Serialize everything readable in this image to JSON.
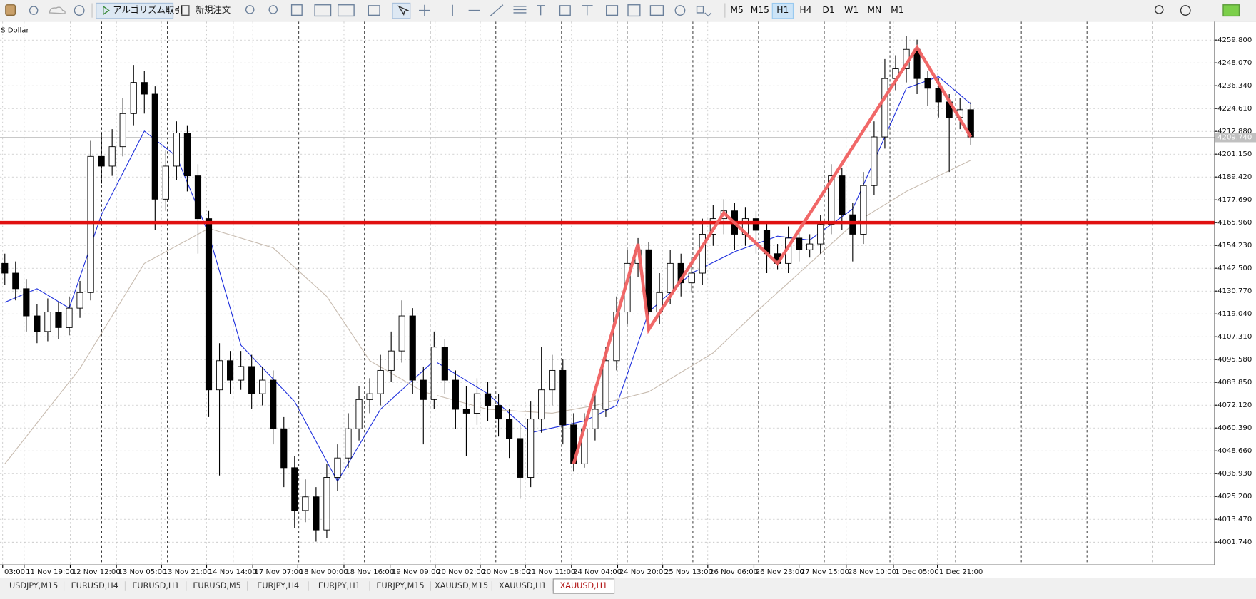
{
  "toolbar": {
    "buttons": [
      "アルゴリズム取引",
      "新規注文"
    ],
    "timeframes": [
      "M5",
      "M15",
      "H1",
      "H4",
      "D1",
      "W1",
      "MN",
      "M1"
    ],
    "active_timeframe": 2
  },
  "chart_data": {
    "type": "candlestick",
    "title": "S Dollar",
    "candles": [
      [
        4145,
        4150,
        4134,
        4140
      ],
      [
        4140,
        4146,
        4126,
        4132
      ],
      [
        4132,
        4137,
        4110,
        4118
      ],
      [
        4118,
        4124,
        4104,
        4110
      ],
      [
        4110,
        4127,
        4105,
        4120
      ],
      [
        4120,
        4125,
        4106,
        4112
      ],
      [
        4112,
        4128,
        4108,
        4122
      ],
      [
        4122,
        4136,
        4117,
        4130
      ],
      [
        4130,
        4208,
        4126,
        4200
      ],
      [
        4200,
        4212,
        4186,
        4195
      ],
      [
        4195,
        4214,
        4190,
        4205
      ],
      [
        4205,
        4230,
        4200,
        4222
      ],
      [
        4222,
        4247,
        4216,
        4238
      ],
      [
        4238,
        4244,
        4222,
        4232
      ],
      [
        4232,
        4236,
        4162,
        4178
      ],
      [
        4178,
        4203,
        4172,
        4195
      ],
      [
        4195,
        4218,
        4188,
        4212
      ],
      [
        4212,
        4216,
        4182,
        4190
      ],
      [
        4190,
        4196,
        4150,
        4168
      ],
      [
        4168,
        4172,
        4066,
        4080
      ],
      [
        4080,
        4104,
        4036,
        4095
      ],
      [
        4095,
        4100,
        4078,
        4085
      ],
      [
        4085,
        4100,
        4080,
        4092
      ],
      [
        4092,
        4098,
        4070,
        4078
      ],
      [
        4078,
        4092,
        4072,
        4085
      ],
      [
        4085,
        4090,
        4052,
        4060
      ],
      [
        4060,
        4066,
        4030,
        4040
      ],
      [
        4040,
        4046,
        4009,
        4018
      ],
      [
        4018,
        4034,
        4012,
        4025
      ],
      [
        4025,
        4030,
        4002,
        4008
      ],
      [
        4008,
        4042,
        4004,
        4035
      ],
      [
        4035,
        4052,
        4028,
        4045
      ],
      [
        4045,
        4068,
        4040,
        4060
      ],
      [
        4060,
        4082,
        4054,
        4075
      ],
      [
        4075,
        4086,
        4068,
        4078
      ],
      [
        4078,
        4098,
        4072,
        4090
      ],
      [
        4090,
        4110,
        4084,
        4100
      ],
      [
        4100,
        4126,
        4094,
        4118
      ],
      [
        4118,
        4122,
        4078,
        4085
      ],
      [
        4085,
        4092,
        4052,
        4075
      ],
      [
        4075,
        4110,
        4070,
        4102
      ],
      [
        4102,
        4106,
        4078,
        4085
      ],
      [
        4085,
        4090,
        4060,
        4070
      ],
      [
        4070,
        4082,
        4046,
        4068
      ],
      [
        4068,
        4086,
        4062,
        4078
      ],
      [
        4078,
        4084,
        4064,
        4072
      ],
      [
        4072,
        4078,
        4056,
        4065
      ],
      [
        4065,
        4070,
        4045,
        4055
      ],
      [
        4055,
        4062,
        4024,
        4035
      ],
      [
        4035,
        4074,
        4030,
        4065
      ],
      [
        4065,
        4102,
        4058,
        4080
      ],
      [
        4080,
        4098,
        4072,
        4090
      ],
      [
        4090,
        4096,
        4052,
        4062
      ],
      [
        4062,
        4068,
        4038,
        4042
      ],
      [
        4042,
        4068,
        4040,
        4060
      ],
      [
        4060,
        4078,
        4054,
        4070
      ],
      [
        4070,
        4102,
        4066,
        4095
      ],
      [
        4095,
        4128,
        4090,
        4120
      ],
      [
        4120,
        4152,
        4114,
        4145
      ],
      [
        4145,
        4158,
        4138,
        4152
      ],
      [
        4152,
        4156,
        4110,
        4120
      ],
      [
        4120,
        4140,
        4114,
        4130
      ],
      [
        4130,
        4152,
        4124,
        4145
      ],
      [
        4145,
        4150,
        4128,
        4135
      ],
      [
        4135,
        4148,
        4130,
        4140
      ],
      [
        4140,
        4168,
        4134,
        4160
      ],
      [
        4160,
        4175,
        4154,
        4168
      ],
      [
        4168,
        4178,
        4160,
        4172
      ],
      [
        4172,
        4176,
        4152,
        4160
      ],
      [
        4160,
        4174,
        4154,
        4168
      ],
      [
        4168,
        4172,
        4150,
        4162
      ],
      [
        4162,
        4166,
        4140,
        4150
      ],
      [
        4150,
        4155,
        4142,
        4145
      ],
      [
        4145,
        4164,
        4140,
        4158
      ],
      [
        4158,
        4162,
        4146,
        4152
      ],
      [
        4152,
        4160,
        4148,
        4155
      ],
      [
        4155,
        4170,
        4150,
        4165
      ],
      [
        4165,
        4196,
        4160,
        4190
      ],
      [
        4190,
        4194,
        4162,
        4170
      ],
      [
        4170,
        4176,
        4146,
        4160
      ],
      [
        4160,
        4192,
        4155,
        4185
      ],
      [
        4185,
        4218,
        4180,
        4210
      ],
      [
        4210,
        4250,
        4204,
        4240
      ],
      [
        4240,
        4252,
        4234,
        4245
      ],
      [
        4245,
        4262,
        4238,
        4255
      ],
      [
        4255,
        4260,
        4232,
        4240
      ],
      [
        4240,
        4244,
        4226,
        4235
      ],
      [
        4235,
        4240,
        4220,
        4228
      ],
      [
        4228,
        4232,
        4192,
        4220
      ],
      [
        4220,
        4230,
        4214,
        4224
      ],
      [
        4224,
        4228,
        4206,
        4210
      ]
    ],
    "xlim": [
      -0.45,
      112.7
    ],
    "xticks": [
      {
        "value": -0.2,
        "label": "03:00"
      },
      {
        "value": 1.8,
        "label": "11 Nov 19:00"
      },
      {
        "value": 6.1,
        "label": "12 Nov 12:00"
      },
      {
        "value": 10.4,
        "label": "13 Nov 05:00"
      },
      {
        "value": 14.6,
        "label": "13 Nov 21:00"
      },
      {
        "value": 18.8,
        "label": "14 Nov 14:00"
      },
      {
        "value": 23.1,
        "label": "17 Nov 07:00"
      },
      {
        "value": 27.3,
        "label": "18 Nov 00:00"
      },
      {
        "value": 31.6,
        "label": "18 Nov 16:00"
      },
      {
        "value": 35.9,
        "label": "19 Nov 09:00"
      },
      {
        "value": 40.1,
        "label": "20 Nov 02:00"
      },
      {
        "value": 44.3,
        "label": "20 Nov 18:00"
      },
      {
        "value": 48.5,
        "label": "21 Nov 11:00"
      },
      {
        "value": 52.8,
        "label": "24 Nov 04:00"
      },
      {
        "value": 57.1,
        "label": "24 Nov 20:00"
      },
      {
        "value": 61.3,
        "label": "25 Nov 13:00"
      },
      {
        "value": 65.5,
        "label": "26 Nov 06:00"
      },
      {
        "value": 69.8,
        "label": "26 Nov 23:00"
      },
      {
        "value": 74.0,
        "label": "27 Nov 15:00"
      },
      {
        "value": 78.4,
        "label": "28 Nov 10:00"
      },
      {
        "value": 82.8,
        "label": "1 Dec 05:00"
      },
      {
        "value": 86.9,
        "label": "1 Dec 21:00"
      }
    ],
    "ylim": [
      3990.2,
      4269.27
    ],
    "yticks": [
      {
        "value": 4259.8,
        "label": "4259.800"
      },
      {
        "value": 4248.07,
        "label": "4248.070"
      },
      {
        "value": 4236.34,
        "label": "4236.340"
      },
      {
        "value": 4224.61,
        "label": "4224.610"
      },
      {
        "value": 4212.88,
        "label": "4212.880"
      },
      {
        "value": 4201.15,
        "label": "4201.150"
      },
      {
        "value": 4189.42,
        "label": "4189.420"
      },
      {
        "value": 4177.69,
        "label": "4177.690"
      },
      {
        "value": 4165.96,
        "label": "4165.960"
      },
      {
        "value": 4154.23,
        "label": "4154.230"
      },
      {
        "value": 4142.5,
        "label": "4142.500"
      },
      {
        "value": 4130.77,
        "label": "4130.770"
      },
      {
        "value": 4119.04,
        "label": "4119.040"
      },
      {
        "value": 4107.31,
        "label": "4107.310"
      },
      {
        "value": 4095.58,
        "label": "4095.580"
      },
      {
        "value": 4083.85,
        "label": "4083.850"
      },
      {
        "value": 4072.12,
        "label": "4072.120"
      },
      {
        "value": 4060.39,
        "label": "4060.390"
      },
      {
        "value": 4048.66,
        "label": "4048.660"
      },
      {
        "value": 4036.93,
        "label": "4036.930"
      },
      {
        "value": 4025.2,
        "label": "4025.200"
      },
      {
        "value": 4013.47,
        "label": "4013.470"
      },
      {
        "value": 4001.74,
        "label": "4001.740"
      }
    ],
    "grid": true,
    "bull_color": "#ffffff",
    "bear_color": "#000000",
    "indicators": [
      {
        "color": "#2233dd",
        "x": [
          0,
          3,
          6,
          9,
          13,
          16,
          19,
          22,
          27,
          31,
          35,
          40,
          45,
          49,
          54,
          57,
          60,
          64,
          68,
          72,
          75,
          79,
          82,
          84,
          87,
          90
        ],
        "values": [
          4125,
          4132,
          4122,
          4170,
          4213,
          4200,
          4160,
          4103,
          4074,
          4033,
          4070,
          4095,
          4078,
          4058,
          4064,
          4072,
          4120,
          4140,
          4151,
          4159,
          4157,
          4173,
          4210,
          4235,
          4241,
          4227
        ]
      },
      {
        "color": "#c8bcb0",
        "x": [
          0,
          7,
          13,
          19,
          25,
          30,
          34,
          39,
          45,
          51,
          55,
          60,
          66,
          70,
          75,
          79,
          84,
          90
        ],
        "values": [
          4042,
          4091,
          4145,
          4163,
          4153,
          4128,
          4095,
          4079,
          4070,
          4068,
          4072,
          4079,
          4099,
          4120,
          4145,
          4165,
          4182,
          4198
        ]
      }
    ],
    "zigzag": {
      "color": "#f06060",
      "x": [
        53,
        59,
        60,
        67,
        72,
        85,
        90
      ],
      "values": [
        4042,
        4155,
        4111,
        4171,
        4145,
        4256,
        4210
      ]
    },
    "hline": {
      "value": 4165.96,
      "color": "#e01010"
    },
    "bid": {
      "value": 4209.74,
      "label": "4209.740"
    }
  },
  "tabs": {
    "items": [
      "USDJPY,M15",
      "EURUSD,H4",
      "EURUSD,H1",
      "EURUSD,M5",
      "EURJPY,H4",
      "EURJPY,H1",
      "EURJPY,M15",
      "XAUUSD,M15",
      "XAUUSD,H1",
      "XAUUSD,H1"
    ],
    "active": 9
  }
}
